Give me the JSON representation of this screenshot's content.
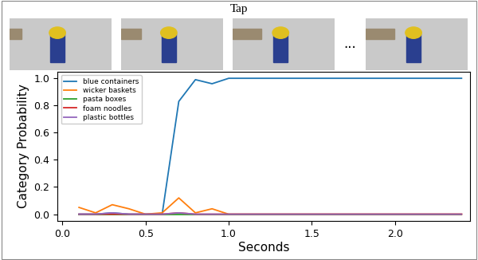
{
  "chart_data": {
    "type": "line",
    "title": "Tap",
    "annotations": [
      "..."
    ],
    "x_label": "Seconds",
    "y_label": "Category Probability",
    "x": [
      0.1,
      0.2,
      0.3,
      0.4,
      0.5,
      0.6,
      0.7,
      0.8,
      0.9,
      1.0,
      1.1,
      1.2,
      1.3,
      1.4,
      1.5,
      1.6,
      1.7,
      1.8,
      1.9,
      2.0,
      2.1,
      2.2,
      2.3,
      2.4
    ],
    "series": [
      {
        "name": "blue containers",
        "color": "#1f77b4",
        "values": [
          0.0,
          0.0,
          0.01,
          0.0,
          0.0,
          0.0,
          0.83,
          0.99,
          0.96,
          1.0,
          1.0,
          1.0,
          1.0,
          1.0,
          1.0,
          1.0,
          1.0,
          1.0,
          1.0,
          1.0,
          1.0,
          1.0,
          1.0,
          1.0
        ]
      },
      {
        "name": "wicker baskets",
        "color": "#ff7f0e",
        "values": [
          0.05,
          0.01,
          0.07,
          0.04,
          0.0,
          0.01,
          0.12,
          0.01,
          0.04,
          0.0,
          0.0,
          0.0,
          0.0,
          0.0,
          0.0,
          0.0,
          0.0,
          0.0,
          0.0,
          0.0,
          0.0,
          0.0,
          0.0,
          0.0
        ]
      },
      {
        "name": "pasta boxes",
        "color": "#2ca02c",
        "values": [
          0.0,
          0.0,
          0.0,
          0.0,
          0.0,
          0.0,
          0.0,
          0.0,
          0.0,
          0.0,
          0.0,
          0.0,
          0.0,
          0.0,
          0.0,
          0.0,
          0.0,
          0.0,
          0.0,
          0.0,
          0.0,
          0.0,
          0.0,
          0.0
        ]
      },
      {
        "name": "foam noodles",
        "color": "#d62728",
        "values": [
          0.0,
          0.0,
          0.0,
          0.0,
          0.0,
          0.0,
          0.01,
          0.0,
          0.0,
          0.0,
          0.0,
          0.0,
          0.0,
          0.0,
          0.0,
          0.0,
          0.0,
          0.0,
          0.0,
          0.0,
          0.0,
          0.0,
          0.0,
          0.0
        ]
      },
      {
        "name": "plastic bottles",
        "color": "#9467bd",
        "values": [
          0.0,
          0.0,
          0.01,
          0.0,
          0.0,
          0.0,
          0.01,
          0.0,
          0.0,
          0.0,
          0.0,
          0.0,
          0.0,
          0.0,
          0.0,
          0.0,
          0.0,
          0.0,
          0.0,
          0.0,
          0.0,
          0.0,
          0.0,
          0.0
        ]
      }
    ],
    "xlim": [
      -0.03,
      2.45
    ],
    "ylim": [
      -0.05,
      1.05
    ],
    "xticks": [
      {
        "value": 0.0,
        "label": "0.0"
      },
      {
        "value": 0.5,
        "label": "0.5"
      },
      {
        "value": 1.0,
        "label": "1.0"
      },
      {
        "value": 1.5,
        "label": "1.5"
      },
      {
        "value": 2.0,
        "label": "2.0"
      }
    ],
    "yticks": [
      {
        "value": 0.0,
        "label": "0.0"
      },
      {
        "value": 0.2,
        "label": "0.2"
      },
      {
        "value": 0.4,
        "label": "0.4"
      },
      {
        "value": 0.6,
        "label": "0.6"
      },
      {
        "value": 0.8,
        "label": "0.8"
      },
      {
        "value": 1.0,
        "label": "1.0"
      }
    ],
    "legend": "upper left",
    "grid": false
  }
}
